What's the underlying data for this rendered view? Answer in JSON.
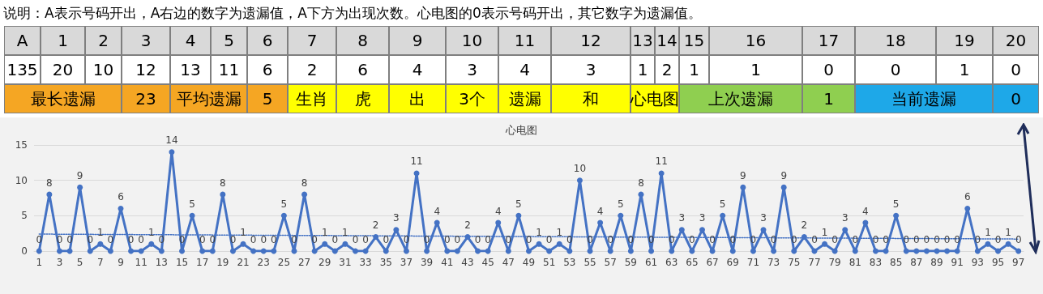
{
  "chart_data": {
    "type": "line",
    "title": "心电图",
    "annotations": [
      "说明：A表示号码开出，A右边的数字为遗漏值，A下方为出现次数。心电图的0表示号码开出，其它数字为遗漏值。",
      "A",
      "1",
      "2",
      "3",
      "4",
      "5",
      "6",
      "7",
      "8",
      "9",
      "10",
      "11",
      "12",
      "13",
      "14",
      "15",
      "16",
      "17",
      "18",
      "19",
      "20",
      "135",
      "20",
      "10",
      "12",
      "13",
      "11",
      "6",
      "2",
      "6",
      "4",
      "3",
      "4",
      "3",
      "1",
      "2",
      "1",
      "1",
      "0",
      "0",
      "1",
      "0",
      "最长遗漏",
      "23",
      "平均遗漏",
      "5",
      "生肖",
      "虎",
      "出",
      "3个",
      "遗漏",
      "和",
      "心电图",
      "上次遗漏",
      "1",
      "当前遗漏",
      "0"
    ],
    "x": [
      1,
      2,
      3,
      4,
      5,
      6,
      7,
      8,
      9,
      10,
      11,
      12,
      13,
      14,
      15,
      16,
      17,
      18,
      19,
      20,
      21,
      22,
      23,
      24,
      25,
      26,
      27,
      28,
      29,
      30,
      31,
      32,
      33,
      34,
      35,
      36,
      37,
      38,
      39,
      40,
      41,
      42,
      43,
      44,
      45,
      46,
      47,
      48,
      49,
      50,
      51,
      52,
      53,
      54,
      55,
      56,
      57,
      58,
      59,
      60,
      61,
      62,
      63,
      64,
      65,
      66,
      67,
      68,
      69,
      70,
      71,
      72,
      73,
      74,
      75,
      76,
      77,
      78,
      79,
      80,
      81,
      82,
      83,
      84,
      85,
      86,
      87,
      88,
      89,
      90,
      91,
      92,
      93,
      94,
      95,
      96,
      97
    ],
    "series": [
      {
        "color": "#4472c4",
        "marker": "circle",
        "line_style": "solid",
        "values": [
          0,
          8,
          0,
          0,
          9,
          0,
          1,
          0,
          6,
          0,
          0,
          1,
          0,
          14,
          0,
          5,
          0,
          0,
          8,
          0,
          1,
          0,
          0,
          0,
          5,
          0,
          8,
          0,
          1,
          0,
          1,
          0,
          0,
          2,
          0,
          3,
          0,
          11,
          0,
          4,
          0,
          0,
          2,
          0,
          0,
          4,
          0,
          5,
          0,
          1,
          0,
          1,
          0,
          10,
          0,
          4,
          0,
          5,
          0,
          8,
          0,
          11,
          0,
          3,
          0,
          3,
          0,
          5,
          0,
          9,
          0,
          3,
          0,
          9,
          0,
          2,
          0,
          1,
          0,
          3,
          0,
          4,
          0,
          0,
          5,
          0,
          0,
          0,
          0,
          0,
          0,
          6,
          0,
          1,
          0,
          1,
          0
        ],
        "value_labels": [
          "0",
          "8",
          "0",
          "0",
          "9",
          "0",
          "1",
          "0",
          "6",
          "0",
          "0",
          "1",
          "0",
          "14",
          "0",
          "5",
          "0",
          "0",
          "8",
          "0",
          "1",
          "0",
          "0",
          "0",
          "5",
          "0",
          "8",
          "0",
          "1",
          "0",
          "1",
          "0",
          "0",
          "2",
          "0",
          "3",
          "0",
          "11",
          "0",
          "4",
          "0",
          "0",
          "2",
          "0",
          "0",
          "4",
          "0",
          "5",
          "0",
          "1",
          "0",
          "1",
          "0",
          "10",
          "0",
          "4",
          "0",
          "5",
          "0",
          "8",
          "0",
          "11",
          "0",
          "3",
          "0",
          "3",
          "0",
          "5",
          "0",
          "9",
          "0",
          "3",
          "0",
          "9",
          "0",
          "2",
          "0",
          "1",
          "0",
          "3",
          "0",
          "4",
          "0",
          "0",
          "5",
          "0",
          "0",
          "0",
          "0",
          "0",
          "0",
          "6",
          "0",
          "1",
          "0",
          "1",
          "0"
        ]
      },
      {
        "color": "#4472c4",
        "marker": "none",
        "line_style": "dotted",
        "x": [
          1,
          97
        ],
        "values": [
          2.4,
          1.7
        ]
      }
    ],
    "xlim": [
      0.5,
      97.5
    ],
    "xticks": [
      1,
      3,
      5,
      7,
      9,
      11,
      13,
      15,
      17,
      19,
      21,
      23,
      25,
      27,
      29,
      31,
      33,
      35,
      37,
      39,
      41,
      43,
      45,
      47,
      49,
      51,
      53,
      55,
      57,
      59,
      61,
      63,
      65,
      67,
      69,
      71,
      73,
      75,
      77,
      79,
      81,
      83,
      85,
      87,
      89,
      91,
      93,
      95,
      97
    ],
    "ylim": [
      0,
      15
    ],
    "yticks": [
      0,
      5,
      10,
      15
    ],
    "grid": "y"
  }
}
